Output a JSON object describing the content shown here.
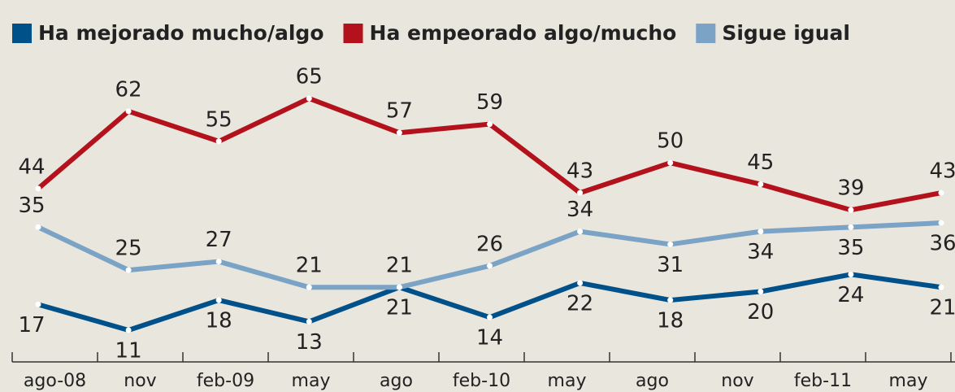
{
  "chart_data": {
    "type": "line",
    "categories": [
      "ago-08",
      "nov",
      "feb-09",
      "may",
      "ago",
      "feb-10",
      "may",
      "ago",
      "nov",
      "feb-11",
      "may"
    ],
    "series": [
      {
        "name": "Ha mejorado mucho/algo",
        "color": "#00508a",
        "values": [
          17,
          11,
          18,
          13,
          21,
          14,
          22,
          18,
          20,
          24,
          21
        ]
      },
      {
        "name": "Ha empeorado algo/mucho",
        "color": "#b3121c",
        "values": [
          44,
          62,
          55,
          65,
          57,
          59,
          43,
          50,
          45,
          39,
          43
        ]
      },
      {
        "name": "Sigue igual",
        "color": "#7aa3c6",
        "values": [
          35,
          25,
          27,
          21,
          21,
          26,
          34,
          31,
          34,
          35,
          36
        ]
      }
    ]
  }
}
